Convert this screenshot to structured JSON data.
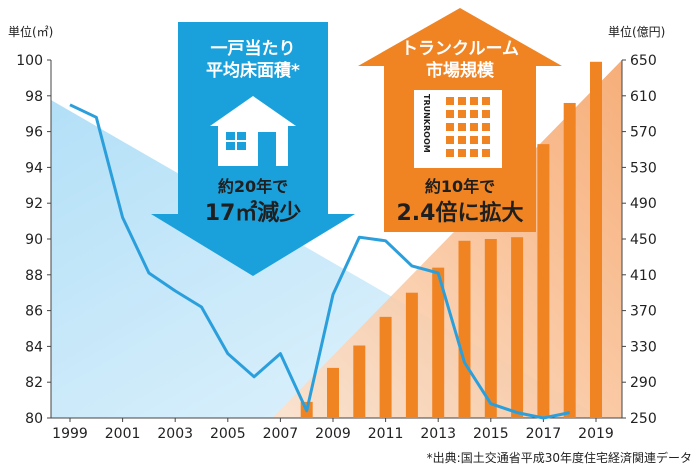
{
  "chart_data": {
    "type": "bar+line",
    "left_axis": {
      "unit_label": "単位(㎡)",
      "range": [
        80,
        100
      ],
      "ticks": [
        "80",
        "82",
        "84",
        "86",
        "88",
        "90",
        "92",
        "94",
        "96",
        "98",
        "100"
      ]
    },
    "right_axis": {
      "unit_label": "単位(億円)",
      "range": [
        250,
        650
      ],
      "ticks": [
        "250",
        "290",
        "330",
        "370",
        "410",
        "450",
        "490",
        "530",
        "570",
        "610",
        "650"
      ]
    },
    "x_ticks": [
      "1999",
      "2001",
      "2003",
      "2005",
      "2007",
      "2009",
      "2011",
      "2013",
      "2015",
      "2017",
      "2019"
    ],
    "series": [
      {
        "name": "一戸当たり平均床面積",
        "kind": "line",
        "axis": "left",
        "color": "#2b9fdc",
        "x": [
          1999,
          2000,
          2001,
          2002,
          2003,
          2004,
          2005,
          2006,
          2007,
          2008,
          2009,
          2010,
          2011,
          2012,
          2013,
          2014,
          2015,
          2016,
          2017,
          2018
        ],
        "values": [
          97.5,
          96.8,
          91.2,
          88.1,
          87.1,
          86.2,
          83.6,
          82.3,
          83.6,
          80.4,
          86.9,
          90.1,
          89.9,
          88.5,
          88.1,
          83.1,
          80.8,
          80.3,
          80.0,
          80.3
        ]
      },
      {
        "name": "トランクルーム市場規模",
        "kind": "bar",
        "axis": "right",
        "color": "#f08423",
        "x": [
          2008,
          2009,
          2010,
          2011,
          2012,
          2013,
          2014,
          2015,
          2016,
          2017,
          2018,
          2019
        ],
        "values": [
          268,
          306,
          331,
          363,
          390,
          418,
          448,
          450,
          452,
          556,
          602,
          648
        ]
      }
    ],
    "background_colors": {
      "blue_wedge": "#cdeafa",
      "orange_wedge": "#f9c9a3"
    }
  },
  "callouts": {
    "down": {
      "title_line1": "一戸当たり",
      "title_line2": "平均床面積*",
      "caption_line1": "約20年で",
      "caption_line2": "17㎡減少",
      "color": "#1aa0db",
      "icon": "house-icon"
    },
    "up": {
      "title_line1": "トランクルーム",
      "title_line2": "市場規模",
      "building_sign": "TRUNKROOM",
      "caption_line1": "約10年で",
      "caption_line2": "2.4倍に拡大",
      "color": "#f08423",
      "icon": "building-icon"
    }
  },
  "source_note": "*出典:国土交通省平成30年度住宅経済関連データ"
}
